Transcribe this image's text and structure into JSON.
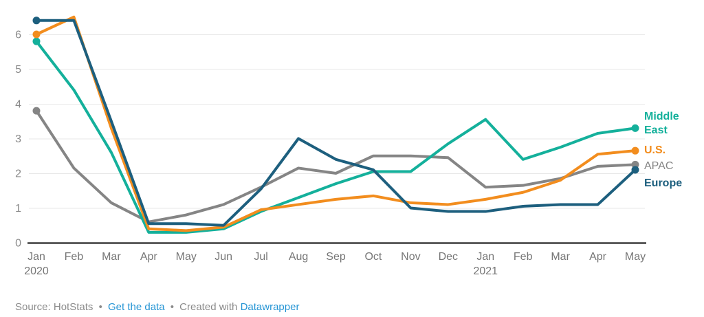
{
  "chart_data": {
    "type": "line",
    "x_labels": [
      "Jan",
      "Feb",
      "Mar",
      "Apr",
      "May",
      "Jun",
      "Jul",
      "Aug",
      "Sep",
      "Oct",
      "Nov",
      "Dec",
      "Jan",
      "Feb",
      "Mar",
      "Apr",
      "May"
    ],
    "x_year_labels": {
      "0": "2020",
      "12": "2021"
    },
    "y_ticks": [
      0,
      1,
      2,
      3,
      4,
      5,
      6
    ],
    "ylim": [
      0,
      6.6
    ],
    "grid": true,
    "legend_position": "right of line ends",
    "series": [
      {
        "name": "Middle East",
        "color": "#14b09b",
        "values": [
          5.8,
          4.4,
          2.6,
          0.3,
          0.3,
          0.4,
          0.9,
          1.3,
          1.7,
          2.05,
          2.05,
          2.85,
          3.55,
          2.4,
          2.75,
          3.15,
          3.3
        ]
      },
      {
        "name": "U.S.",
        "color": "#f28d1e",
        "values": [
          6.0,
          6.5,
          3.3,
          0.4,
          0.35,
          0.45,
          0.95,
          1.1,
          1.25,
          1.35,
          1.15,
          1.1,
          1.25,
          1.45,
          1.8,
          2.55,
          2.65
        ]
      },
      {
        "name": "APAC",
        "color": "#858585",
        "values": [
          3.8,
          2.15,
          1.15,
          0.6,
          0.8,
          1.1,
          1.6,
          2.15,
          2.0,
          2.5,
          2.5,
          2.45,
          1.6,
          1.65,
          1.85,
          2.2,
          2.25
        ]
      },
      {
        "name": "Europe",
        "color": "#1d5f7e",
        "values": [
          6.4,
          6.4,
          3.5,
          0.55,
          0.55,
          0.5,
          1.55,
          3.0,
          2.4,
          2.1,
          1.0,
          0.9,
          0.9,
          1.05,
          1.1,
          1.1,
          2.1
        ]
      }
    ]
  },
  "colors": {
    "grid": "#e7e7e7",
    "baseline": "#3d3d3d",
    "y_axis_text": "#8a8a8a",
    "x_axis_text": "#767676",
    "link": "#2494d4",
    "footer_text": "#8a8a8a"
  },
  "footer": {
    "source_label": "Source: HotStats",
    "separator": "•",
    "get_data_link": "Get the data",
    "created_with": "Created with",
    "tool_link": "Datawrapper"
  }
}
